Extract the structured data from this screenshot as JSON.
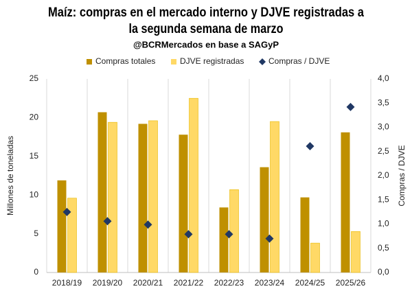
{
  "chart_data": {
    "type": "bar",
    "title": [
      "Maíz: compras en el mercado interno y DJVE registradas a",
      "la segunda semana de marzo"
    ],
    "subtitle": "@BCRMercados en base a SAGyP",
    "y_label": "Millones de toneladas",
    "y2_label": "Compras / DJVE",
    "categories": [
      "2018/19",
      "2019/20",
      "2020/21",
      "2021/22",
      "2022/23",
      "2023/24",
      "2024/25",
      "2025/26"
    ],
    "series": [
      {
        "name": "Compras totales",
        "color": "#bf9000",
        "values": [
          11.9,
          20.7,
          19.2,
          17.8,
          8.4,
          13.6,
          9.7,
          18.1
        ]
      },
      {
        "name": "DJVE registradas",
        "color": "#ffd966",
        "values": [
          9.6,
          19.4,
          19.6,
          22.5,
          10.7,
          19.5,
          3.8,
          5.3
        ]
      },
      {
        "name": "Compras / DJVE",
        "color": "#203864",
        "axis": "y2",
        "values": [
          1.25,
          1.06,
          0.99,
          0.79,
          0.79,
          0.7,
          2.61,
          3.42
        ]
      }
    ],
    "ylim": [
      0,
      25
    ],
    "yticks": [
      0,
      5,
      10,
      15,
      20,
      25
    ],
    "y2lim": [
      0,
      4
    ],
    "y2ticks": [
      {
        "value": 0,
        "label": "0,0"
      },
      {
        "value": 0.5,
        "label": "0,5"
      },
      {
        "value": 1,
        "label": "1,0"
      },
      {
        "value": 1.5,
        "label": "1,5"
      },
      {
        "value": 2,
        "label": "2,0"
      },
      {
        "value": 2.5,
        "label": "2,5"
      },
      {
        "value": 3,
        "label": "3,0"
      },
      {
        "value": 3.5,
        "label": "3,5"
      },
      {
        "value": 4,
        "label": "4,0"
      }
    ],
    "legend": "top"
  }
}
